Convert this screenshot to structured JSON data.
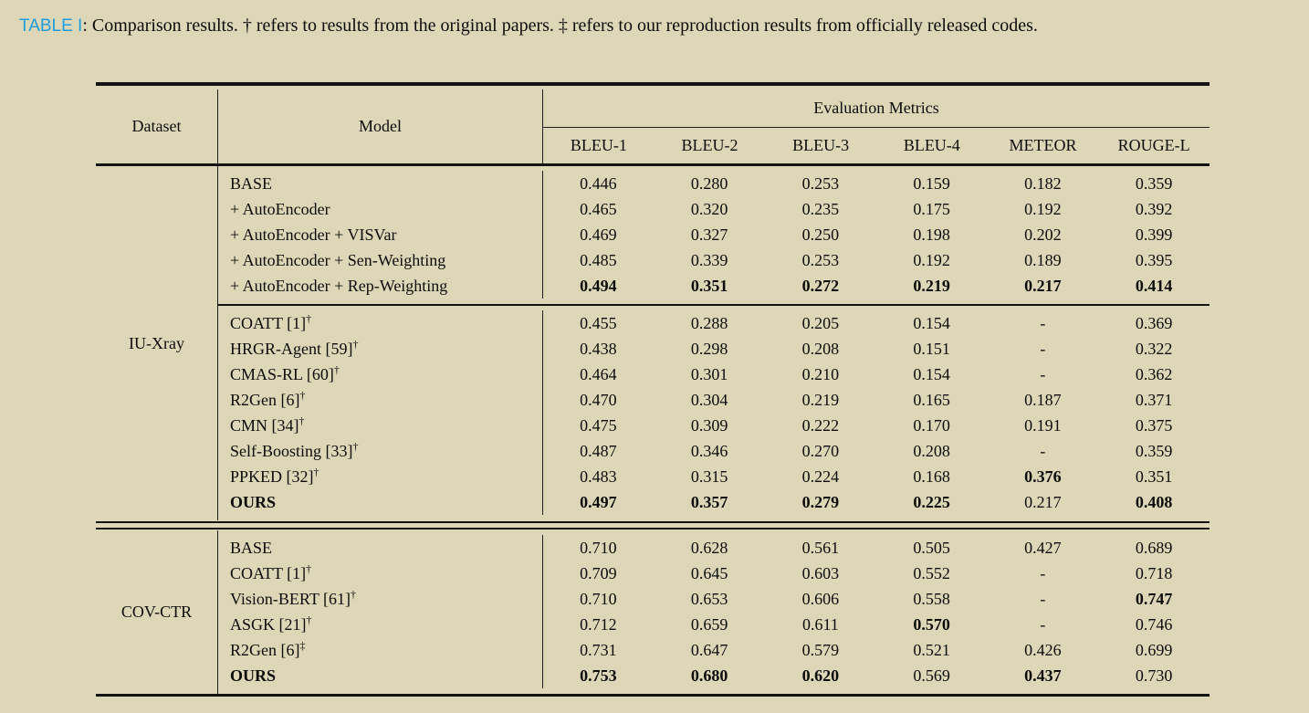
{
  "caption": {
    "label": "TABLE I",
    "rest": ": Comparison results. † refers to results from the original papers. ‡ refers to our reproduction results from officially released codes."
  },
  "table": {
    "header": {
      "dataset": "Dataset",
      "model": "Model",
      "metrics_group": "Evaluation Metrics",
      "metrics": [
        "BLEU-1",
        "BLEU-2",
        "BLEU-3",
        "BLEU-4",
        "METEOR",
        "ROUGE-L"
      ]
    },
    "sections": [
      {
        "dataset": "IU-Xray",
        "blocks": [
          {
            "rows": [
              {
                "model": "BASE",
                "sup": "",
                "bold_model": false,
                "values": [
                  "0.446",
                  "0.280",
                  "0.253",
                  "0.159",
                  "0.182",
                  "0.359"
                ],
                "bold": [
                  0,
                  0,
                  0,
                  0,
                  0,
                  0
                ]
              },
              {
                "model": "+ AutoEncoder",
                "sup": "",
                "bold_model": false,
                "values": [
                  "0.465",
                  "0.320",
                  "0.235",
                  "0.175",
                  "0.192",
                  "0.392"
                ],
                "bold": [
                  0,
                  0,
                  0,
                  0,
                  0,
                  0
                ]
              },
              {
                "model": "+ AutoEncoder + VISVar",
                "sup": "",
                "bold_model": false,
                "values": [
                  "0.469",
                  "0.327",
                  "0.250",
                  "0.198",
                  "0.202",
                  "0.399"
                ],
                "bold": [
                  0,
                  0,
                  0,
                  0,
                  0,
                  0
                ]
              },
              {
                "model": "+ AutoEncoder + Sen-Weighting",
                "sup": "",
                "bold_model": false,
                "values": [
                  "0.485",
                  "0.339",
                  "0.253",
                  "0.192",
                  "0.189",
                  "0.395"
                ],
                "bold": [
                  0,
                  0,
                  0,
                  0,
                  0,
                  0
                ]
              },
              {
                "model": "+ AutoEncoder + Rep-Weighting",
                "sup": "",
                "bold_model": false,
                "values": [
                  "0.494",
                  "0.351",
                  "0.272",
                  "0.219",
                  "0.217",
                  "0.414"
                ],
                "bold": [
                  1,
                  1,
                  1,
                  1,
                  1,
                  1
                ]
              }
            ]
          },
          {
            "rows": [
              {
                "model": "COATT [1]",
                "sup": "†",
                "bold_model": false,
                "values": [
                  "0.455",
                  "0.288",
                  "0.205",
                  "0.154",
                  "-",
                  "0.369"
                ],
                "bold": [
                  0,
                  0,
                  0,
                  0,
                  0,
                  0
                ]
              },
              {
                "model": "HRGR-Agent [59]",
                "sup": "†",
                "bold_model": false,
                "values": [
                  "0.438",
                  "0.298",
                  "0.208",
                  "0.151",
                  "-",
                  "0.322"
                ],
                "bold": [
                  0,
                  0,
                  0,
                  0,
                  0,
                  0
                ]
              },
              {
                "model": "CMAS-RL [60]",
                "sup": "†",
                "bold_model": false,
                "values": [
                  "0.464",
                  "0.301",
                  "0.210",
                  "0.154",
                  "-",
                  "0.362"
                ],
                "bold": [
                  0,
                  0,
                  0,
                  0,
                  0,
                  0
                ]
              },
              {
                "model": "R2Gen [6]",
                "sup": "†",
                "bold_model": false,
                "values": [
                  "0.470",
                  "0.304",
                  "0.219",
                  "0.165",
                  "0.187",
                  "0.371"
                ],
                "bold": [
                  0,
                  0,
                  0,
                  0,
                  0,
                  0
                ]
              },
              {
                "model": "CMN [34]",
                "sup": "†",
                "bold_model": false,
                "values": [
                  "0.475",
                  "0.309",
                  "0.222",
                  "0.170",
                  "0.191",
                  "0.375"
                ],
                "bold": [
                  0,
                  0,
                  0,
                  0,
                  0,
                  0
                ]
              },
              {
                "model": "Self-Boosting [33]",
                "sup": "†",
                "bold_model": false,
                "values": [
                  "0.487",
                  "0.346",
                  "0.270",
                  "0.208",
                  "-",
                  "0.359"
                ],
                "bold": [
                  0,
                  0,
                  0,
                  0,
                  0,
                  0
                ]
              },
              {
                "model": "PPKED [32]",
                "sup": "†",
                "bold_model": false,
                "values": [
                  "0.483",
                  "0.315",
                  "0.224",
                  "0.168",
                  "0.376",
                  "0.351"
                ],
                "bold": [
                  0,
                  0,
                  0,
                  0,
                  1,
                  0
                ]
              },
              {
                "model": "OURS",
                "sup": "",
                "bold_model": true,
                "values": [
                  "0.497",
                  "0.357",
                  "0.279",
                  "0.225",
                  "0.217",
                  "0.408"
                ],
                "bold": [
                  1,
                  1,
                  1,
                  1,
                  0,
                  1
                ]
              }
            ]
          }
        ]
      },
      {
        "dataset": "COV-CTR",
        "blocks": [
          {
            "rows": [
              {
                "model": "BASE",
                "sup": "",
                "bold_model": false,
                "values": [
                  "0.710",
                  "0.628",
                  "0.561",
                  "0.505",
                  "0.427",
                  "0.689"
                ],
                "bold": [
                  0,
                  0,
                  0,
                  0,
                  0,
                  0
                ]
              },
              {
                "model": "COATT [1]",
                "sup": "†",
                "bold_model": false,
                "values": [
                  "0.709",
                  "0.645",
                  "0.603",
                  "0.552",
                  "-",
                  "0.718"
                ],
                "bold": [
                  0,
                  0,
                  0,
                  0,
                  0,
                  0
                ]
              },
              {
                "model": "Vision-BERT [61]",
                "sup": "†",
                "bold_model": false,
                "values": [
                  "0.710",
                  "0.653",
                  "0.606",
                  "0.558",
                  "-",
                  "0.747"
                ],
                "bold": [
                  0,
                  0,
                  0,
                  0,
                  0,
                  1
                ]
              },
              {
                "model": "ASGK [21]",
                "sup": "†",
                "bold_model": false,
                "values": [
                  "0.712",
                  "0.659",
                  "0.611",
                  "0.570",
                  "-",
                  "0.746"
                ],
                "bold": [
                  0,
                  0,
                  0,
                  1,
                  0,
                  0
                ]
              },
              {
                "model": "R2Gen [6]",
                "sup": "‡",
                "bold_model": false,
                "values": [
                  "0.731",
                  "0.647",
                  "0.579",
                  "0.521",
                  "0.426",
                  "0.699"
                ],
                "bold": [
                  0,
                  0,
                  0,
                  0,
                  0,
                  0
                ]
              },
              {
                "model": "OURS",
                "sup": "",
                "bold_model": true,
                "values": [
                  "0.753",
                  "0.680",
                  "0.620",
                  "0.569",
                  "0.437",
                  "0.730"
                ],
                "bold": [
                  1,
                  1,
                  1,
                  0,
                  1,
                  0
                ]
              }
            ]
          }
        ]
      }
    ]
  }
}
